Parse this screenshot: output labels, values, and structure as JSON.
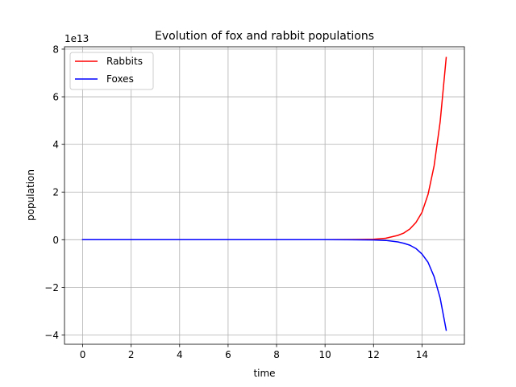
{
  "chart_data": {
    "type": "line",
    "title": "Evolution of fox and rabbit populations",
    "xlabel": "time",
    "ylabel": "population",
    "y_offset_label": "1e13",
    "xlim": [
      -0.75,
      15.75
    ],
    "ylim": [
      -4.39,
      8.1
    ],
    "xticks": [
      0,
      2,
      4,
      6,
      8,
      10,
      12,
      14
    ],
    "yticks": [
      -4,
      -2,
      0,
      2,
      4,
      6,
      8
    ],
    "ytick_labels": [
      "−4",
      "−2",
      "0",
      "2",
      "4",
      "6",
      "8"
    ],
    "grid": true,
    "legend_position": "upper-left",
    "series": [
      {
        "name": "Rabbits",
        "color": "#ff0000",
        "x": [
          0,
          2,
          4,
          6,
          8,
          10,
          11,
          11.5,
          12,
          12.5,
          13,
          13.25,
          13.5,
          13.75,
          14,
          14.25,
          14.5,
          14.75,
          15
        ],
        "y": [
          0,
          0,
          0,
          0,
          0,
          0,
          0.005,
          0.01,
          0.02,
          0.06,
          0.18,
          0.28,
          0.45,
          0.72,
          1.15,
          1.9,
          3.1,
          4.95,
          7.65
        ]
      },
      {
        "name": "Foxes",
        "color": "#0000ff",
        "x": [
          0,
          2,
          4,
          6,
          8,
          10,
          11,
          11.5,
          12,
          12.5,
          13,
          13.25,
          13.5,
          13.75,
          14,
          14.25,
          14.5,
          14.75,
          15
        ],
        "y": [
          0,
          0,
          0,
          0,
          0,
          0,
          -0.003,
          -0.006,
          -0.01,
          -0.03,
          -0.09,
          -0.15,
          -0.23,
          -0.37,
          -0.6,
          -0.95,
          -1.55,
          -2.45,
          -3.8
        ]
      }
    ]
  }
}
